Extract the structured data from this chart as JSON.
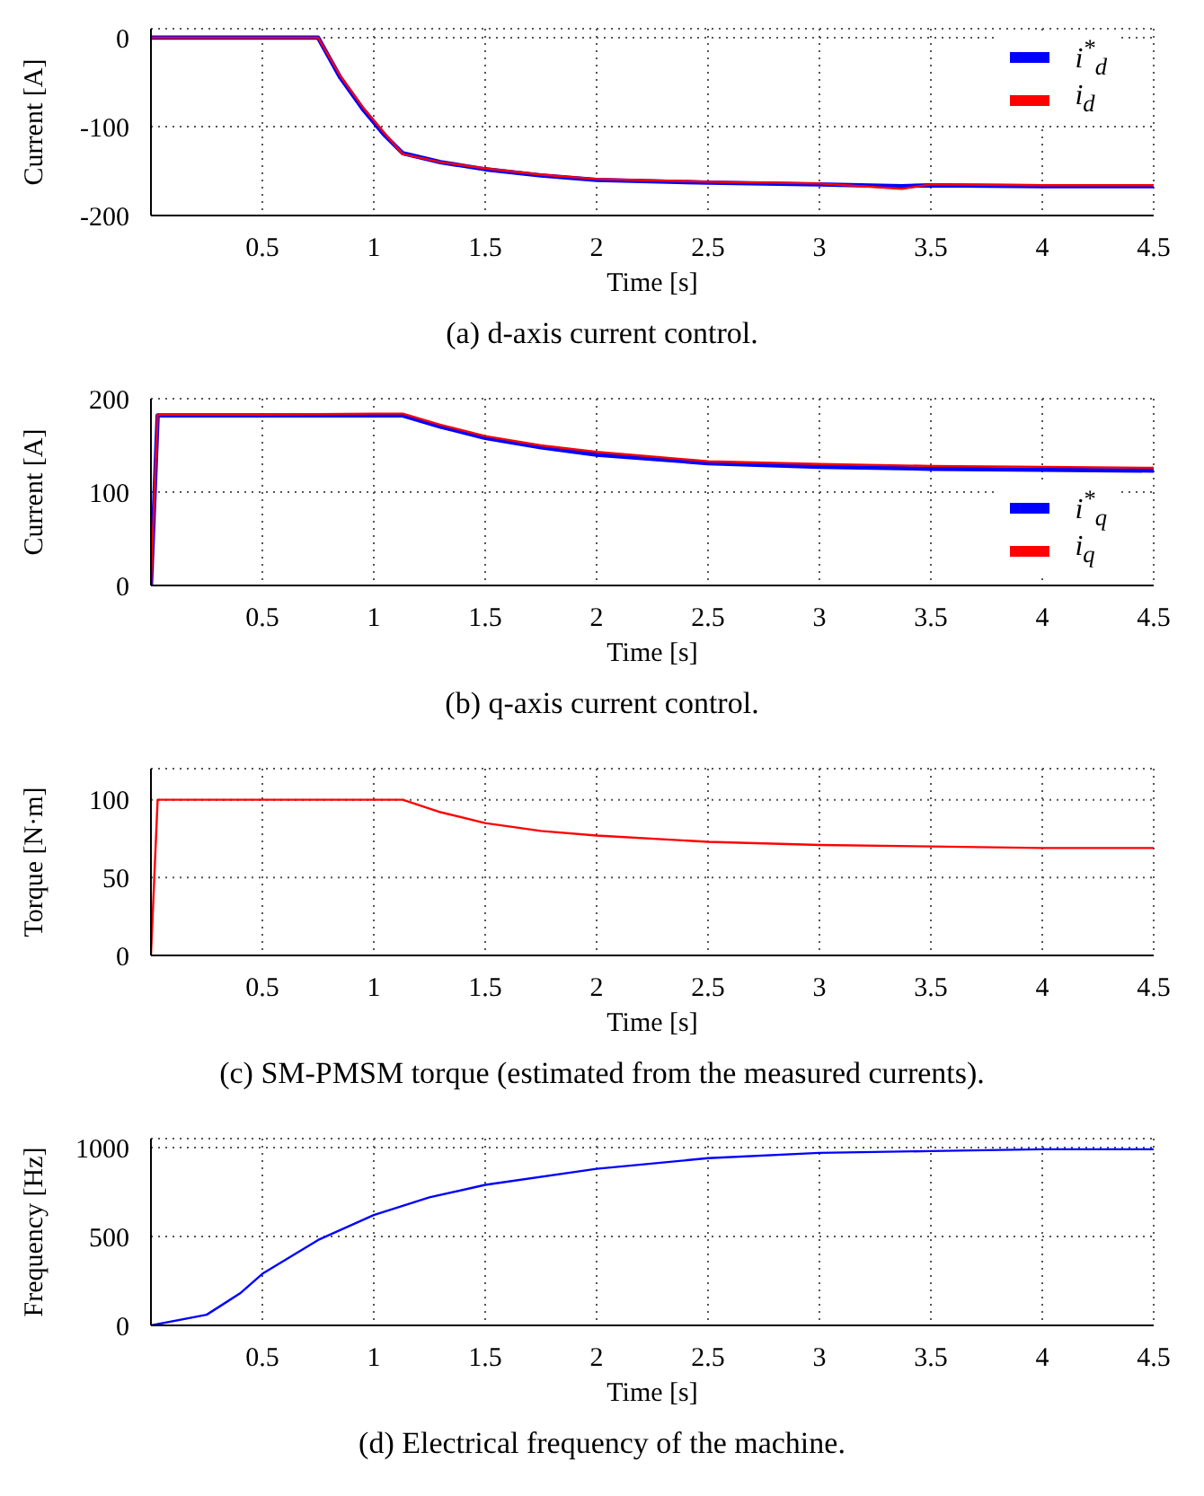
{
  "chart_data": [
    {
      "type": "line",
      "title": "(a) d-axis current control.",
      "xlabel": "Time [s]",
      "ylabel": "Current [A]",
      "x": [
        0,
        0.5,
        0.75,
        0.85,
        0.95,
        1.05,
        1.13,
        1.3,
        1.5,
        1.75,
        2,
        2.5,
        3,
        3.37,
        3.5,
        4,
        4.5
      ],
      "series": [
        {
          "name": "i$^{*}$$_{d}$",
          "color": "#0000ff",
          "values": [
            0,
            0,
            0,
            -45,
            -80,
            -110,
            -130,
            -140,
            -148,
            -155,
            -160,
            -163,
            -165,
            -167,
            -166,
            -167,
            -167
          ]
        },
        {
          "name": "i$_{d}$",
          "color": "#ff0000",
          "values": [
            0,
            0,
            0,
            -43,
            -78,
            -108,
            -131,
            -140,
            -147,
            -154,
            -159,
            -162,
            -164,
            -170,
            -165,
            -166,
            -166
          ]
        }
      ],
      "xlim": [
        0,
        4.5
      ],
      "xticks": [
        0.5,
        1,
        1.5,
        2,
        2.5,
        3,
        3.5,
        4,
        4.5
      ],
      "ylim": [
        -200,
        10
      ],
      "yticks": [
        -200,
        -100,
        0
      ],
      "grid": true,
      "legend": "top right"
    },
    {
      "type": "line",
      "title": "(b) q-axis current control.",
      "xlabel": "Time [s]",
      "ylabel": "Current [A]",
      "x": [
        0,
        0.03,
        0.5,
        1,
        1.13,
        1.3,
        1.5,
        1.75,
        2,
        2.5,
        3,
        3.5,
        4,
        4.5
      ],
      "series": [
        {
          "name": "i$^{*}$$_{q}$",
          "color": "#0000ff",
          "values": [
            0,
            182,
            182,
            182,
            182,
            170,
            158,
            148,
            140,
            131,
            127,
            125,
            124,
            123
          ]
        },
        {
          "name": "i$_{q}$",
          "color": "#ff0000",
          "values": [
            0,
            183,
            183,
            184,
            184,
            172,
            160,
            150,
            143,
            133,
            130,
            128,
            127,
            126
          ]
        }
      ],
      "xlim": [
        0,
        4.5
      ],
      "xticks": [
        0.5,
        1,
        1.5,
        2,
        2.5,
        3,
        3.5,
        4,
        4.5
      ],
      "ylim": [
        0,
        200
      ],
      "yticks": [
        0,
        100,
        200
      ],
      "grid": true,
      "legend": "right"
    },
    {
      "type": "line",
      "title": "(c) SM-PMSM torque (estimated from the measured currents).",
      "xlabel": "Time [s]",
      "ylabel": "Torque [N·m]",
      "x": [
        0,
        0.03,
        0.5,
        1,
        1.13,
        1.3,
        1.5,
        1.75,
        2,
        2.5,
        3,
        3.5,
        4,
        4.5
      ],
      "series": [
        {
          "color": "#ff0000",
          "values": [
            0,
            100,
            100,
            100,
            100,
            92,
            85,
            80,
            77,
            73,
            71,
            70,
            69,
            69
          ]
        }
      ],
      "xlim": [
        0,
        4.5
      ],
      "xticks": [
        0.5,
        1,
        1.5,
        2,
        2.5,
        3,
        3.5,
        4,
        4.5
      ],
      "ylim": [
        0,
        120
      ],
      "yticks": [
        0,
        50,
        100
      ],
      "grid": true
    },
    {
      "type": "line",
      "title": "(d) Electrical frequency of the machine.",
      "xlabel": "Time [s]",
      "ylabel": "Frequency [Hz]",
      "x": [
        0,
        0.25,
        0.4,
        0.5,
        0.75,
        1,
        1.25,
        1.5,
        2,
        2.5,
        3,
        3.5,
        4,
        4.5
      ],
      "series": [
        {
          "color": "#0000ff",
          "values": [
            0,
            60,
            180,
            290,
            480,
            620,
            720,
            790,
            880,
            940,
            970,
            980,
            990,
            990
          ]
        }
      ],
      "xlim": [
        0,
        4.5
      ],
      "xticks": [
        0.5,
        1,
        1.5,
        2,
        2.5,
        3,
        3.5,
        4,
        4.5
      ],
      "ylim": [
        0,
        1050
      ],
      "yticks": [
        0,
        500,
        1000
      ],
      "grid": true
    }
  ]
}
